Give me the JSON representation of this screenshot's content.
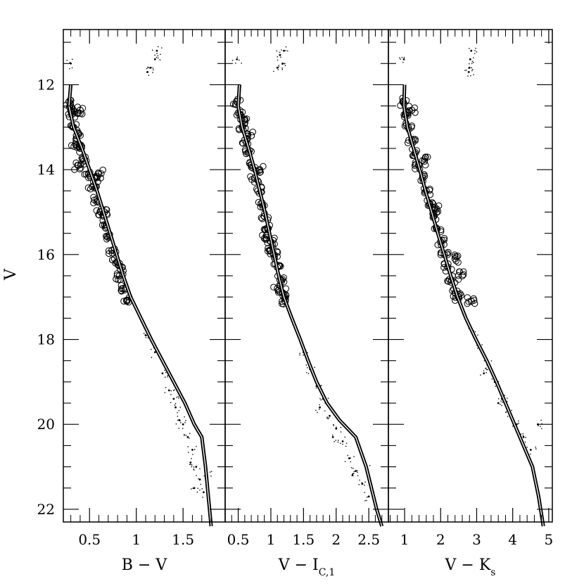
{
  "chart_data": [
    {
      "type": "scatter",
      "panel": "B - V",
      "xlabel": "B − V",
      "xlabel_main": "B − V",
      "xlabel_sub": "",
      "ylabel": "V",
      "xlim": [
        0.22,
        1.95
      ],
      "ylim": [
        22.3,
        10.7
      ],
      "y_inverted": true,
      "xticks": [
        0.5,
        1,
        1.5
      ],
      "xtick_labels": [
        "0.5",
        "1",
        "1.5"
      ],
      "xticks_minor": [
        0.3,
        0.4,
        0.6,
        0.7,
        0.8,
        0.9,
        1.1,
        1.2,
        1.3,
        1.4,
        1.6,
        1.7,
        1.8
      ],
      "yticks": [
        12,
        14,
        16,
        18,
        20,
        22
      ],
      "ytick_labels": [
        "12",
        "14",
        "16",
        "18",
        "20",
        "22"
      ],
      "series": [
        {
          "kind": "isochrone",
          "points": [
            [
              0.3,
              12.0
            ],
            [
              0.28,
              12.5
            ],
            [
              0.33,
              13.0
            ],
            [
              0.42,
              13.5
            ],
            [
              0.5,
              14.0
            ],
            [
              0.58,
              14.5
            ],
            [
              0.65,
              15.0
            ],
            [
              0.72,
              15.5
            ],
            [
              0.79,
              16.0
            ],
            [
              0.86,
              16.5
            ],
            [
              0.94,
              17.0
            ],
            [
              1.05,
              17.5
            ],
            [
              1.16,
              18.0
            ],
            [
              1.28,
              18.5
            ],
            [
              1.4,
              19.0
            ],
            [
              1.52,
              19.5
            ],
            [
              1.62,
              20.0
            ],
            [
              1.7,
              20.3
            ],
            [
              1.74,
              21.0
            ],
            [
              1.77,
              21.7
            ],
            [
              1.8,
              22.4
            ]
          ]
        },
        {
          "kind": "members",
          "points": [
            [
              0.28,
              12.4
            ],
            [
              0.31,
              12.7
            ],
            [
              0.33,
              13.0
            ],
            [
              0.36,
              13.2
            ],
            [
              0.4,
              13.5
            ],
            [
              0.44,
              13.8
            ],
            [
              0.49,
              14.1
            ],
            [
              0.53,
              14.4
            ],
            [
              0.58,
              14.7
            ],
            [
              0.62,
              15.0
            ],
            [
              0.66,
              15.3
            ],
            [
              0.7,
              15.6
            ],
            [
              0.74,
              15.9
            ],
            [
              0.78,
              16.2
            ],
            [
              0.82,
              16.5
            ],
            [
              0.86,
              16.8
            ],
            [
              0.9,
              17.1
            ],
            [
              0.55,
              14.2
            ],
            [
              0.6,
              14.1
            ],
            [
              0.35,
              13.4
            ],
            [
              0.4,
              12.6
            ],
            [
              0.66,
              15.0
            ],
            [
              0.85,
              16.3
            ],
            [
              0.3,
              12.6
            ],
            [
              0.38,
              13.9
            ]
          ]
        },
        {
          "kind": "field",
          "points": [
            [
              1.1,
              17.9
            ],
            [
              1.2,
              18.3
            ],
            [
              1.28,
              18.8
            ],
            [
              1.35,
              19.2
            ],
            [
              1.42,
              19.6
            ],
            [
              1.5,
              20.0
            ],
            [
              1.55,
              20.3
            ],
            [
              1.6,
              20.6
            ],
            [
              1.64,
              21.0
            ],
            [
              1.68,
              21.3
            ],
            [
              1.72,
              21.6
            ],
            [
              1.58,
              20.9
            ],
            [
              1.62,
              21.5
            ],
            [
              1.75,
              21.1
            ],
            [
              1.46,
              19.9
            ],
            [
              1.4,
              19.4
            ],
            [
              1.15,
              11.6
            ],
            [
              1.2,
              11.4
            ],
            [
              1.22,
              11.2
            ],
            [
              1.12,
              11.7
            ],
            [
              0.3,
              11.5
            ]
          ]
        }
      ]
    },
    {
      "type": "scatter",
      "panel": "V - I_C,1",
      "xlabel": "V − IC,1",
      "xlabel_main": "V − I",
      "xlabel_sub": "C,1",
      "ylabel": "V",
      "xlim": [
        0.3,
        2.8
      ],
      "ylim": [
        22.3,
        10.7
      ],
      "y_inverted": true,
      "xticks": [
        0.5,
        1,
        1.5,
        2,
        2.5
      ],
      "xtick_labels": [
        "0.5",
        "1",
        "1.5",
        "2",
        "2.5"
      ],
      "xticks_minor": [
        0.4,
        0.6,
        0.7,
        0.8,
        0.9,
        1.1,
        1.2,
        1.3,
        1.4,
        1.6,
        1.7,
        1.8,
        1.9,
        2.1,
        2.2,
        2.3,
        2.4,
        2.6,
        2.7
      ],
      "yticks": [
        12,
        14,
        16,
        18,
        20,
        22
      ],
      "ytick_labels": [
        "12",
        "14",
        "16",
        "18",
        "20",
        "22"
      ],
      "series": [
        {
          "kind": "isochrone",
          "points": [
            [
              0.52,
              12.0
            ],
            [
              0.5,
              12.5
            ],
            [
              0.56,
              13.0
            ],
            [
              0.66,
              13.5
            ],
            [
              0.75,
              14.0
            ],
            [
              0.83,
              14.5
            ],
            [
              0.91,
              15.0
            ],
            [
              0.98,
              15.5
            ],
            [
              1.05,
              16.0
            ],
            [
              1.12,
              16.5
            ],
            [
              1.2,
              17.0
            ],
            [
              1.32,
              17.5
            ],
            [
              1.45,
              18.0
            ],
            [
              1.57,
              18.5
            ],
            [
              1.7,
              19.0
            ],
            [
              1.86,
              19.5
            ],
            [
              2.05,
              19.9
            ],
            [
              2.3,
              20.3
            ],
            [
              2.46,
              21.0
            ],
            [
              2.62,
              22.0
            ],
            [
              2.7,
              22.4
            ]
          ]
        },
        {
          "kind": "members",
          "points": [
            [
              0.48,
              12.4
            ],
            [
              0.52,
              12.7
            ],
            [
              0.56,
              13.0
            ],
            [
              0.6,
              13.3
            ],
            [
              0.65,
              13.6
            ],
            [
              0.7,
              13.9
            ],
            [
              0.75,
              14.2
            ],
            [
              0.8,
              14.5
            ],
            [
              0.85,
              14.8
            ],
            [
              0.9,
              15.1
            ],
            [
              0.95,
              15.4
            ],
            [
              1.0,
              15.7
            ],
            [
              1.05,
              16.0
            ],
            [
              1.1,
              16.3
            ],
            [
              1.14,
              16.6
            ],
            [
              1.18,
              16.9
            ],
            [
              1.22,
              17.1
            ],
            [
              0.93,
              15.6
            ],
            [
              0.98,
              15.9
            ],
            [
              0.7,
              13.2
            ],
            [
              0.83,
              14.0
            ],
            [
              1.1,
              16.8
            ],
            [
              0.6,
              12.9
            ]
          ]
        },
        {
          "kind": "field",
          "points": [
            [
              1.5,
              18.3
            ],
            [
              1.6,
              18.7
            ],
            [
              1.7,
              19.1
            ],
            [
              1.8,
              19.4
            ],
            [
              1.9,
              19.8
            ],
            [
              2.0,
              20.1
            ],
            [
              2.1,
              20.4
            ],
            [
              2.2,
              20.8
            ],
            [
              2.3,
              21.1
            ],
            [
              2.4,
              21.4
            ],
            [
              2.5,
              21.7
            ],
            [
              1.95,
              20.3
            ],
            [
              2.25,
              21.2
            ],
            [
              2.45,
              21.0
            ],
            [
              1.75,
              19.6
            ],
            [
              1.1,
              11.6
            ],
            [
              1.14,
              11.3
            ],
            [
              1.18,
              11.5
            ],
            [
              1.2,
              11.2
            ],
            [
              0.48,
              11.4
            ]
          ]
        }
      ]
    },
    {
      "type": "scatter",
      "panel": "V - K_s",
      "xlabel": "V − Ks",
      "xlabel_main": "V − K",
      "xlabel_sub": "s",
      "ylabel": "V",
      "xlim": [
        0.55,
        5.1
      ],
      "ylim": [
        22.3,
        10.7
      ],
      "y_inverted": true,
      "xticks": [
        1,
        2,
        3,
        4,
        5
      ],
      "xtick_labels": [
        "1",
        "2",
        "3",
        "4",
        "5"
      ],
      "xticks_minor": [
        0.6,
        0.8,
        1.2,
        1.4,
        1.6,
        1.8,
        2.2,
        2.4,
        2.6,
        2.8,
        3.2,
        3.4,
        3.6,
        3.8,
        4.2,
        4.4,
        4.6,
        4.8
      ],
      "yticks": [
        12,
        14,
        16,
        18,
        20,
        22
      ],
      "ytick_labels": [
        "12",
        "14",
        "16",
        "18",
        "20",
        "22"
      ],
      "series": [
        {
          "kind": "isochrone",
          "points": [
            [
              1.0,
              12.0
            ],
            [
              0.98,
              12.5
            ],
            [
              1.08,
              13.0
            ],
            [
              1.25,
              13.5
            ],
            [
              1.42,
              14.0
            ],
            [
              1.58,
              14.5
            ],
            [
              1.75,
              15.0
            ],
            [
              1.92,
              15.5
            ],
            [
              2.1,
              16.0
            ],
            [
              2.28,
              16.5
            ],
            [
              2.47,
              17.0
            ],
            [
              2.7,
              17.5
            ],
            [
              2.98,
              18.0
            ],
            [
              3.28,
              18.5
            ],
            [
              3.55,
              19.0
            ],
            [
              3.8,
              19.5
            ],
            [
              4.05,
              20.0
            ],
            [
              4.3,
              20.5
            ],
            [
              4.55,
              21.0
            ],
            [
              4.72,
              21.7
            ],
            [
              4.85,
              22.4
            ]
          ]
        },
        {
          "kind": "members",
          "points": [
            [
              0.95,
              12.4
            ],
            [
              1.02,
              12.7
            ],
            [
              1.1,
              13.0
            ],
            [
              1.2,
              13.3
            ],
            [
              1.3,
              13.6
            ],
            [
              1.4,
              13.9
            ],
            [
              1.5,
              14.2
            ],
            [
              1.6,
              14.5
            ],
            [
              1.7,
              14.8
            ],
            [
              1.8,
              15.1
            ],
            [
              1.9,
              15.4
            ],
            [
              2.0,
              15.7
            ],
            [
              2.1,
              16.0
            ],
            [
              2.2,
              16.3
            ],
            [
              2.3,
              16.6
            ],
            [
              2.4,
              16.9
            ],
            [
              2.5,
              17.0
            ],
            [
              1.55,
              13.8
            ],
            [
              1.85,
              14.9
            ],
            [
              2.4,
              16.1
            ],
            [
              2.85,
              17.1
            ],
            [
              1.2,
              12.6
            ],
            [
              2.6,
              16.5
            ]
          ]
        },
        {
          "kind": "field",
          "points": [
            [
              2.9,
              17.8
            ],
            [
              3.1,
              18.2
            ],
            [
              3.3,
              18.6
            ],
            [
              3.5,
              19.0
            ],
            [
              3.7,
              19.4
            ],
            [
              3.9,
              19.7
            ],
            [
              4.1,
              20.0
            ],
            [
              4.3,
              20.3
            ],
            [
              4.5,
              20.6
            ],
            [
              3.2,
              18.8
            ],
            [
              3.6,
              19.5
            ],
            [
              4.7,
              20.0
            ],
            [
              2.8,
              11.6
            ],
            [
              2.82,
              11.4
            ],
            [
              2.85,
              11.2
            ],
            [
              2.78,
              11.7
            ],
            [
              0.98,
              11.4
            ]
          ]
        }
      ]
    }
  ]
}
